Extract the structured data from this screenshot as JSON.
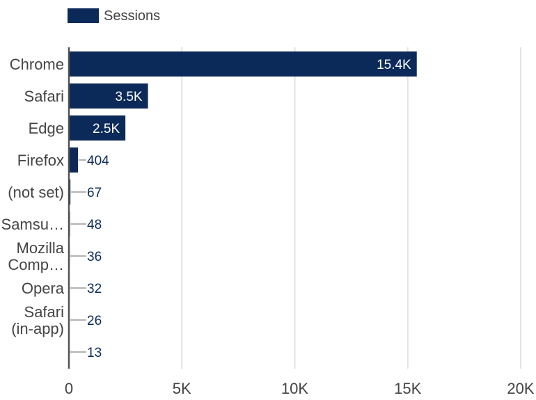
{
  "chart_data": {
    "type": "bar",
    "orientation": "horizontal",
    "categories": [
      [
        "Chrome"
      ],
      [
        "Safari"
      ],
      [
        "Edge"
      ],
      [
        "Firefox"
      ],
      [
        "(not set)"
      ],
      [
        "Samsu…"
      ],
      [
        "Mozilla",
        "Comp…"
      ],
      [
        "Opera"
      ],
      [
        "Safari",
        "(in-app)"
      ],
      [
        ""
      ]
    ],
    "series": [
      {
        "name": "Sessions",
        "values": [
          15400,
          3500,
          2500,
          404,
          67,
          48,
          36,
          32,
          26,
          13
        ],
        "labels": [
          "15.4K",
          "3.5K",
          "2.5K",
          "404",
          "67",
          "48",
          "36",
          "32",
          "26",
          "13"
        ]
      }
    ],
    "xlim": [
      0,
      20000
    ],
    "xticks": [
      0,
      5000,
      10000,
      15000,
      20000
    ],
    "xtick_labels": [
      "0",
      "5K",
      "10K",
      "15K",
      "20K"
    ],
    "grid": true,
    "legend_position": "top-left",
    "colors": {
      "bar": "#0b2a5a",
      "grid": "#e3e3e3",
      "axis": "#555555",
      "label_inside": "#ffffff",
      "label_outside": "#0b2a5a"
    }
  }
}
